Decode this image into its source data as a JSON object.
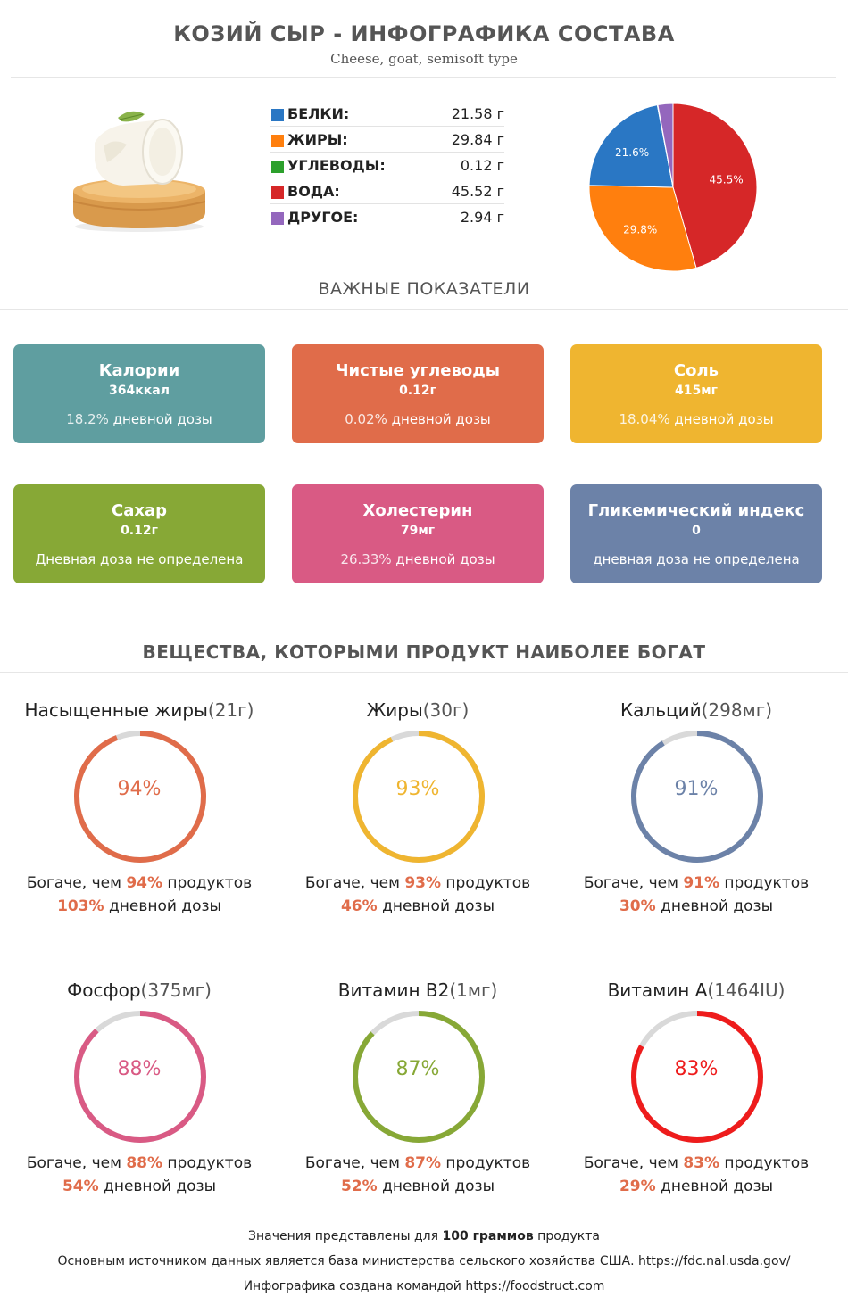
{
  "header": {
    "title": "КОЗИЙ СЫР - ИНФОГРАФИКА СОСТАВА",
    "subtitle": "Cheese, goat, semisoft type"
  },
  "composition": [
    {
      "label": "БЕЛКИ:",
      "value": "21.58 г",
      "color": "#2a77c4"
    },
    {
      "label": "ЖИРЫ:",
      "value": "29.84 г",
      "color": "#ff7f0e"
    },
    {
      "label": "УГЛЕВОДЫ:",
      "value": "0.12 г",
      "color": "#2ca02c"
    },
    {
      "label": "ВОДА:",
      "value": "45.52 г",
      "color": "#d62728"
    },
    {
      "label": "ДРУГОЕ:",
      "value": "2.94 г",
      "color": "#9467bd"
    }
  ],
  "chart_data": {
    "type": "pie",
    "slices": [
      {
        "name": "ВОДА",
        "value": 45.5,
        "label": "45.5%",
        "color": "#d62728"
      },
      {
        "name": "ЖИРЫ",
        "value": 29.8,
        "label": "29.8%",
        "color": "#ff7f0e"
      },
      {
        "name": "БЕЛКИ",
        "value": 21.6,
        "label": "21.6%",
        "color": "#2a77c4"
      },
      {
        "name": "УГЛЕВОДЫ",
        "value": 0.1,
        "label": "",
        "color": "#2ca02c"
      },
      {
        "name": "ДРУГОЕ",
        "value": 2.9,
        "label": "",
        "color": "#9467bd"
      }
    ]
  },
  "section1": "ВАЖНЫЕ ПОКАЗАТЕЛИ",
  "cards": [
    {
      "title": "Калории",
      "value": "364ккал",
      "pct": "18.2%",
      "daily": " дневной дозы",
      "color": "#5f9ea0"
    },
    {
      "title": "Чистые углеводы",
      "value": "0.12г",
      "pct": "0.02%",
      "daily": " дневной дозы",
      "color": "#e06c4a"
    },
    {
      "title": "Соль",
      "value": "415мг",
      "pct": "18.04%",
      "daily": " дневной дозы",
      "color": "#efb530"
    },
    {
      "title": "Сахар",
      "value": "0.12г",
      "pct": "",
      "daily": "Дневная доза не определена",
      "color": "#87a836"
    },
    {
      "title": "Холестерин",
      "value": "79мг",
      "pct": "26.33%",
      "daily": " дневной дозы",
      "color": "#d95a84"
    },
    {
      "title": "Гликемический индекс",
      "value": "0",
      "pct": "",
      "daily": "дневная доза не определена",
      "color": "#6c82a8"
    }
  ],
  "section2": "ВЕЩЕСТВА, КОТОРЫМИ ПРОДУКТ НАИБОЛЕЕ БОГАТ",
  "nutrients": [
    {
      "name": "Насыщенные жиры",
      "amount": "(21г)",
      "percent": 94,
      "pct_label": "94%",
      "richer_pre": "Богаче, чем ",
      "richer_pct": "94%",
      "richer_post": " продуктов",
      "daily_pct": "103%",
      "daily_post": " дневной дозы",
      "color": "#e06c4a"
    },
    {
      "name": "Жиры",
      "amount": "(30г)",
      "percent": 93,
      "pct_label": "93%",
      "richer_pre": "Богаче, чем ",
      "richer_pct": "93%",
      "richer_post": " продуктов",
      "daily_pct": "46%",
      "daily_post": " дневной дозы",
      "color": "#efb530"
    },
    {
      "name": "Кальций",
      "amount": "(298мг)",
      "percent": 91,
      "pct_label": "91%",
      "richer_pre": "Богаче, чем ",
      "richer_pct": "91%",
      "richer_post": " продуктов",
      "daily_pct": "30%",
      "daily_post": " дневной дозы",
      "color": "#6c82a8"
    },
    {
      "name": "Фосфор",
      "amount": "(375мг)",
      "percent": 88,
      "pct_label": "88%",
      "richer_pre": "Богаче, чем ",
      "richer_pct": "88%",
      "richer_post": " продуктов",
      "daily_pct": "54%",
      "daily_post": " дневной дозы",
      "color": "#d95a84"
    },
    {
      "name": "Витамин B2",
      "amount": "(1мг)",
      "percent": 87,
      "pct_label": "87%",
      "richer_pre": "Богаче, чем ",
      "richer_pct": "87%",
      "richer_post": " продуктов",
      "daily_pct": "52%",
      "daily_post": " дневной дозы",
      "color": "#87a836"
    },
    {
      "name": "Витамин A",
      "amount": "(1464IU)",
      "percent": 83,
      "pct_label": "83%",
      "richer_pre": "Богаче, чем ",
      "richer_pct": "83%",
      "richer_post": " продуктов",
      "daily_pct": "29%",
      "daily_post": " дневной дозы",
      "color": "#ee1c1c"
    }
  ],
  "footer": {
    "line1_pre": "Значения представлены для ",
    "line1_bold": "100 граммов",
    "line1_post": " продукта",
    "line2": "Основным источником данных является база министерства сельского хозяйства США. https://fdc.nal.usda.gov/",
    "line3": "Инфографика создана командой https://foodstruct.com"
  },
  "image": {
    "icon": "goat-cheese-illustration"
  }
}
